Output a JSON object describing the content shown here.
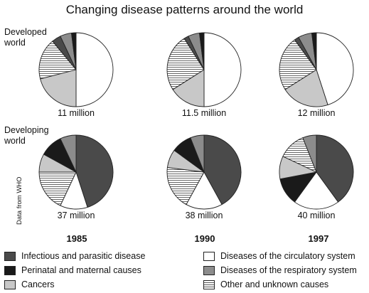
{
  "chart_data": {
    "type": "pie",
    "title": "Changing disease patterns around the world",
    "source": "Data from WHO",
    "years": [
      "1985",
      "1990",
      "1997"
    ],
    "categories": [
      "Infectious and parasitic disease",
      "Perinatal and maternal causes",
      "Cancers",
      "Diseases of the circulatory system",
      "Diseases of the respiratory system",
      "Other and unknown causes"
    ],
    "colors": {
      "Infectious and parasitic disease": "#4a4a4a",
      "Perinatal and maternal causes": "#1a1a1a",
      "Cancers": "#c8c8c8",
      "Diseases of the circulatory system": "#ffffff",
      "Diseases of the respiratory system": "#8c8c8c",
      "Other and unknown causes": "hatch"
    },
    "groups": [
      {
        "name": "Developed world",
        "charts": [
          {
            "year": "1985",
            "total": "11 million",
            "values": {
              "Diseases of the circulatory system": 50,
              "Cancers": 21,
              "Other and unknown causes": 18,
              "Infectious and parasitic disease": 4,
              "Diseases of the respiratory system": 5,
              "Perinatal and maternal causes": 2
            }
          },
          {
            "year": "1990",
            "total": "11.5 million",
            "values": {
              "Diseases of the circulatory system": 50,
              "Other and unknown causes": 25,
              "Cancers": 16,
              "Diseases of the respiratory system": 5,
              "Infectious and parasitic disease": 2,
              "Perinatal and maternal causes": 2
            }
          },
          {
            "year": "1997",
            "total": "12 million",
            "values": {
              "Diseases of the circulatory system": 45,
              "Other and unknown causes": 24,
              "Cancers": 21,
              "Diseases of the respiratory system": 6,
              "Infectious and parasitic disease": 2,
              "Perinatal and maternal causes": 2
            }
          }
        ]
      },
      {
        "name": "Developing world",
        "charts": [
          {
            "year": "1985",
            "total": "37 million",
            "values": {
              "Infectious and parasitic disease": 45,
              "Other and unknown causes": 18,
              "Diseases of the circulatory system": 12,
              "Cancers": 8,
              "Perinatal and maternal causes": 10,
              "Diseases of the respiratory system": 7
            }
          },
          {
            "year": "1990",
            "total": "38 million",
            "values": {
              "Infectious and parasitic disease": 42,
              "Diseases of the circulatory system": 16,
              "Other and unknown causes": 19,
              "Cancers": 8,
              "Perinatal and maternal causes": 9,
              "Diseases of the respiratory system": 6
            }
          },
          {
            "year": "1997",
            "total": "40 million",
            "values": {
              "Infectious and parasitic disease": 40,
              "Diseases of the circulatory system": 20,
              "Perinatal and maternal causes": 12,
              "Cancers": 10,
              "Other and unknown causes": 12,
              "Diseases of the respiratory system": 6
            }
          }
        ]
      }
    ],
    "order": [
      [
        "Diseases of the circulatory system",
        "Cancers",
        "Other and unknown causes",
        "Infectious and parasitic disease",
        "Diseases of the respiratory system",
        "Perinatal and maternal causes"
      ],
      [
        "Diseases of the circulatory system",
        "Cancers",
        "Other and unknown causes",
        "Infectious and parasitic disease",
        "Diseases of the respiratory system",
        "Perinatal and maternal causes"
      ],
      [
        "Diseases of the circulatory system",
        "Cancers",
        "Other and unknown causes",
        "Infectious and parasitic disease",
        "Diseases of the respiratory system",
        "Perinatal and maternal causes"
      ],
      [
        "Infectious and parasitic disease",
        "Diseases of the circulatory system",
        "Other and unknown causes",
        "Cancers",
        "Perinatal and maternal causes",
        "Diseases of the respiratory system"
      ],
      [
        "Infectious and parasitic disease",
        "Diseases of the circulatory system",
        "Other and unknown causes",
        "Cancers",
        "Perinatal and maternal causes",
        "Diseases of the respiratory system"
      ],
      [
        "Infectious and parasitic disease",
        "Diseases of the circulatory system",
        "Perinatal and maternal causes",
        "Cancers",
        "Other and unknown causes",
        "Diseases of the respiratory system"
      ]
    ],
    "legend_placement": "bottom"
  }
}
